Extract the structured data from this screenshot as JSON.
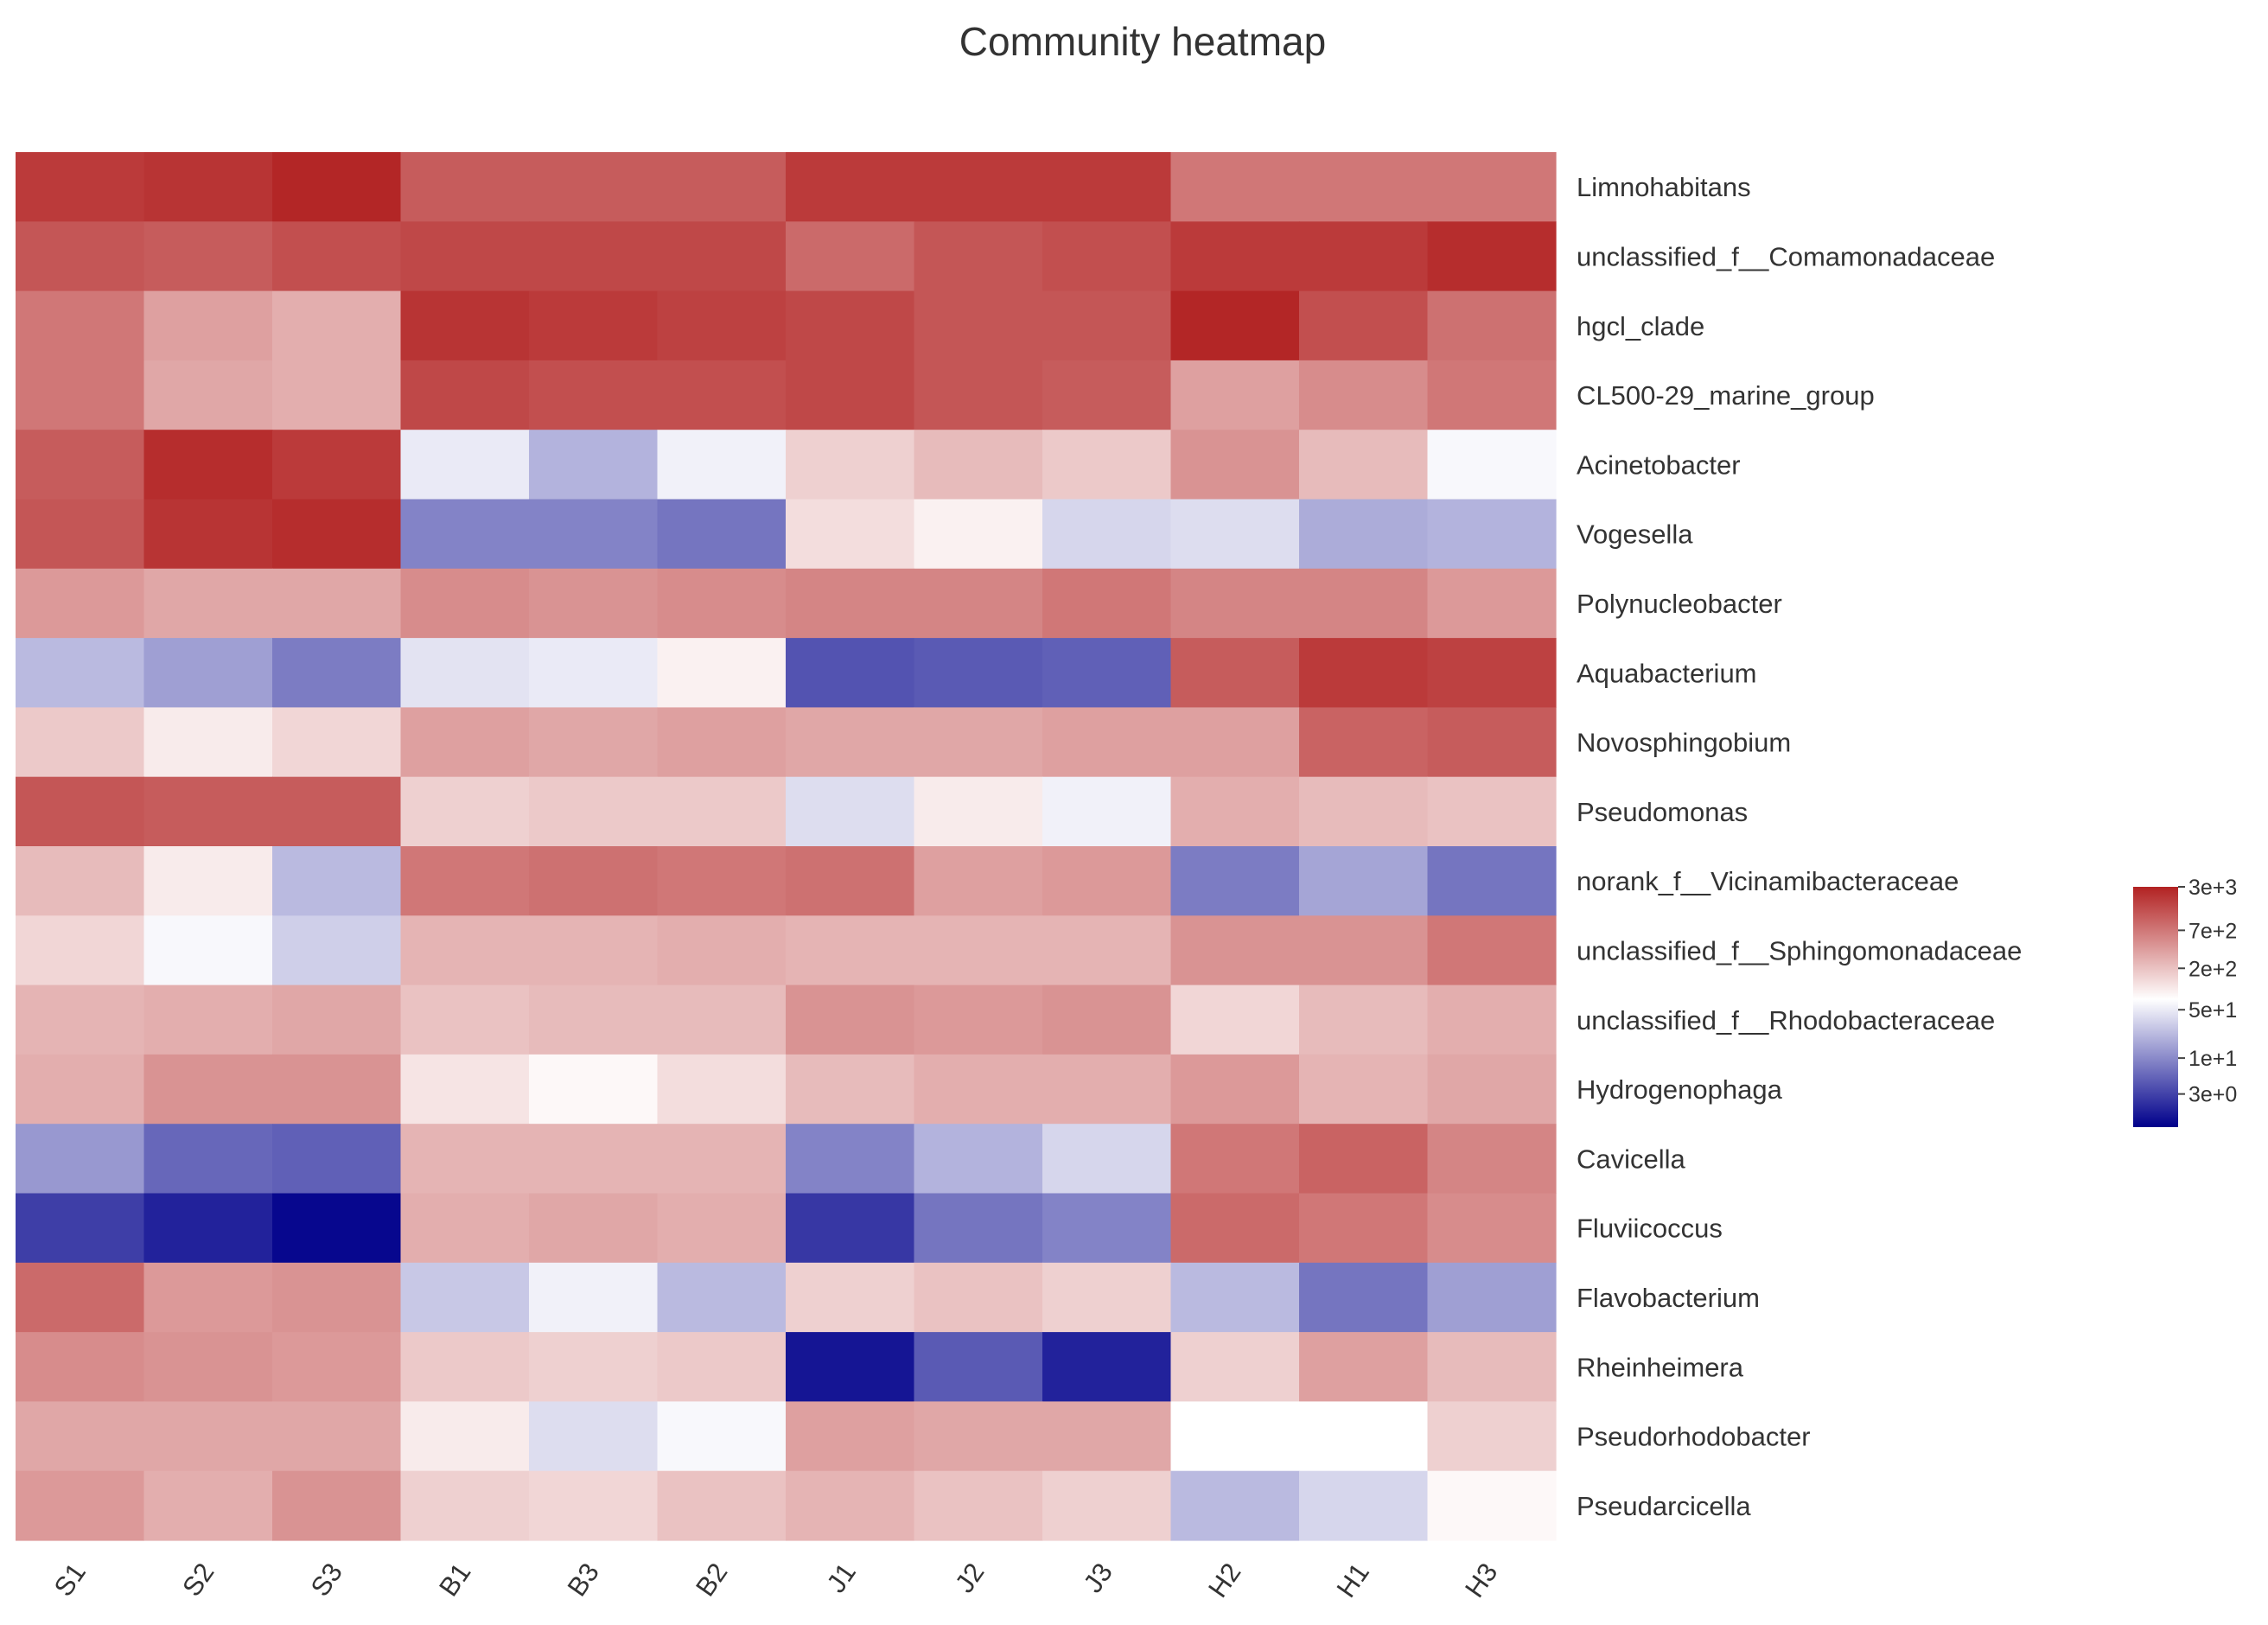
{
  "chart_data": {
    "type": "heatmap",
    "title": "Community heatmap",
    "columns": [
      "S1",
      "S2",
      "S3",
      "B1",
      "B3",
      "B2",
      "J1",
      "J2",
      "J3",
      "H2",
      "H1",
      "H3"
    ],
    "rows": [
      "Limnohabitans",
      "unclassified_f__Comamonadaceae",
      "hgcl_clade",
      "CL500-29_marine_group",
      "Acinetobacter",
      "Vogesella",
      "Polynucleobacter",
      "Aquabacterium",
      "Novosphingobium",
      "Pseudomonas",
      "norank_f__Vicinamibacteraceae",
      "unclassified_f__Sphingomonadaceae",
      "unclassified_f__Rhodobacteraceae",
      "Hydrogenophaga",
      "Cavicella",
      "Fluviicoccus",
      "Flavobacterium",
      "Rheinheimera",
      "Pseudorhodobacter",
      "Pseudarcicella"
    ],
    "value_scale": "log10",
    "values_log10": [
      [
        3.3,
        3.35,
        3.45,
        3.05,
        3.05,
        3.05,
        3.3,
        3.3,
        3.3,
        2.85,
        2.85,
        2.85
      ],
      [
        3.1,
        3.05,
        3.15,
        3.2,
        3.2,
        3.2,
        2.95,
        3.1,
        3.15,
        3.3,
        3.3,
        3.4
      ],
      [
        2.85,
        2.55,
        2.45,
        3.35,
        3.3,
        3.25,
        3.2,
        3.1,
        3.1,
        3.45,
        3.15,
        2.9
      ],
      [
        2.85,
        2.5,
        2.45,
        3.2,
        3.15,
        3.15,
        3.2,
        3.1,
        3.05,
        2.55,
        2.7,
        2.85
      ],
      [
        3.05,
        3.4,
        3.3,
        1.7,
        1.3,
        1.75,
        2.2,
        2.35,
        2.25,
        2.65,
        2.35,
        1.8
      ],
      [
        3.1,
        3.35,
        3.4,
        0.95,
        0.95,
        0.85,
        2.1,
        1.95,
        1.55,
        1.6,
        1.25,
        1.3
      ],
      [
        2.6,
        2.5,
        2.5,
        2.7,
        2.65,
        2.7,
        2.75,
        2.75,
        2.85,
        2.75,
        2.75,
        2.6
      ],
      [
        1.35,
        1.15,
        0.9,
        1.65,
        1.7,
        1.95,
        0.6,
        0.65,
        0.7,
        3.05,
        3.3,
        3.25
      ],
      [
        2.25,
        2.0,
        2.15,
        2.55,
        2.5,
        2.55,
        2.5,
        2.5,
        2.55,
        2.55,
        3.0,
        3.05
      ],
      [
        3.1,
        3.05,
        3.05,
        2.2,
        2.25,
        2.25,
        1.6,
        2.0,
        1.75,
        2.45,
        2.35,
        2.3
      ],
      [
        2.35,
        2.0,
        1.35,
        2.85,
        2.9,
        2.85,
        2.9,
        2.55,
        2.6,
        0.9,
        1.2,
        0.85
      ],
      [
        2.15,
        1.8,
        1.5,
        2.4,
        2.4,
        2.45,
        2.4,
        2.4,
        2.4,
        2.65,
        2.65,
        2.85
      ],
      [
        2.4,
        2.45,
        2.5,
        2.3,
        2.35,
        2.35,
        2.65,
        2.6,
        2.65,
        2.15,
        2.35,
        2.45
      ],
      [
        2.45,
        2.65,
        2.65,
        2.05,
        1.9,
        2.1,
        2.35,
        2.45,
        2.45,
        2.6,
        2.4,
        2.5
      ],
      [
        1.1,
        0.75,
        0.7,
        2.4,
        2.4,
        2.4,
        0.95,
        1.3,
        1.55,
        2.85,
        3.0,
        2.75
      ],
      [
        0.45,
        0.25,
        0.05,
        2.45,
        2.5,
        2.45,
        0.4,
        0.85,
        0.95,
        2.95,
        2.85,
        2.7
      ],
      [
        2.95,
        2.6,
        2.65,
        1.45,
        1.75,
        1.35,
        2.2,
        2.3,
        2.2,
        1.35,
        0.85,
        1.15
      ],
      [
        2.7,
        2.65,
        2.6,
        2.25,
        2.2,
        2.25,
        0.15,
        0.65,
        0.25,
        2.2,
        2.55,
        2.35
      ],
      [
        2.5,
        2.5,
        2.5,
        2.0,
        1.6,
        1.8,
        2.55,
        2.5,
        2.5,
        1.85,
        1.85,
        2.2
      ],
      [
        2.6,
        2.45,
        2.65,
        2.2,
        2.15,
        2.3,
        2.4,
        2.3,
        2.2,
        1.35,
        1.55,
        1.9
      ]
    ],
    "colorbar": {
      "ticks": [
        "3e+3",
        "7e+2",
        "2e+2",
        "5e+1",
        "1e+1",
        "3e+0"
      ],
      "tick_values_log10": [
        3.48,
        2.85,
        2.3,
        1.7,
        1.0,
        0.48
      ],
      "range_log10": [
        0.0,
        3.48
      ],
      "low_color": "#00008b",
      "mid_color": "#ffffff",
      "high_color": "#b22222",
      "mid_value_log10": 1.85
    },
    "grid": false,
    "legend_position": "right"
  }
}
